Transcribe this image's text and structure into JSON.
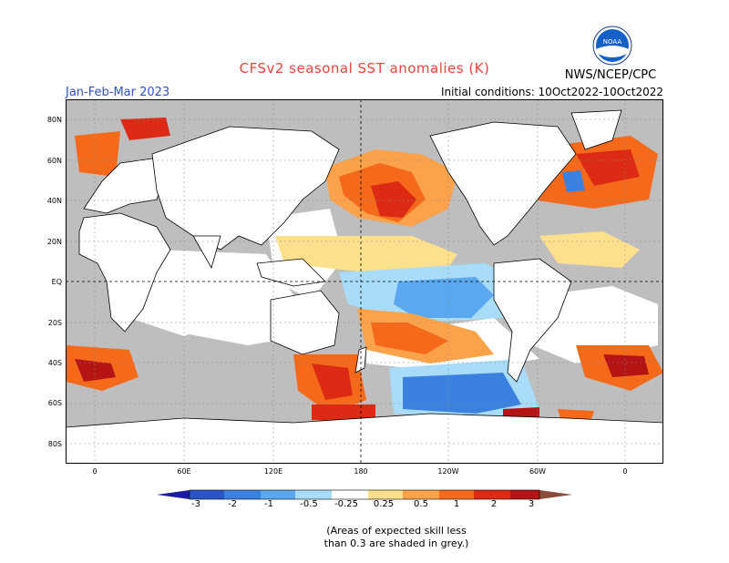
{
  "title": "CFSv2 seasonal SST anomalies (K)",
  "season": "Jan-Feb-Mar 2023",
  "initial_conditions": "Initial conditions: 10Oct2022-10Oct2022",
  "organization": "NWS/NCEP/CPC",
  "logo_text": "NOAA",
  "lat_labels": [
    "80N",
    "60N",
    "40N",
    "20N",
    "EQ",
    "20S",
    "40S",
    "60S",
    "80S"
  ],
  "lon_labels": [
    "0",
    "60E",
    "120E",
    "180",
    "120W",
    "60W",
    "0"
  ],
  "colorbar": {
    "labels": [
      "-3",
      "-2",
      "-1",
      "-0.5",
      "-0.25",
      "0.25",
      "0.5",
      "1",
      "2",
      "3"
    ],
    "colors": [
      "#1c1ca0",
      "#2a55c8",
      "#3b82e0",
      "#5aa8f0",
      "#a8dcf8",
      "#ffffff",
      "#fde08c",
      "#fca24a",
      "#f46a1a",
      "#dc2a14",
      "#b41414",
      "#8c4a3a"
    ]
  },
  "skill_note_line1": "(Areas of expected skill less",
  "skill_note_line2": "than 0.3 are shaded in grey.)",
  "colors": {
    "land": "#ffffff",
    "ocean_low_skill": "#bebebe",
    "ocean_neutral": "#ffffff"
  }
}
